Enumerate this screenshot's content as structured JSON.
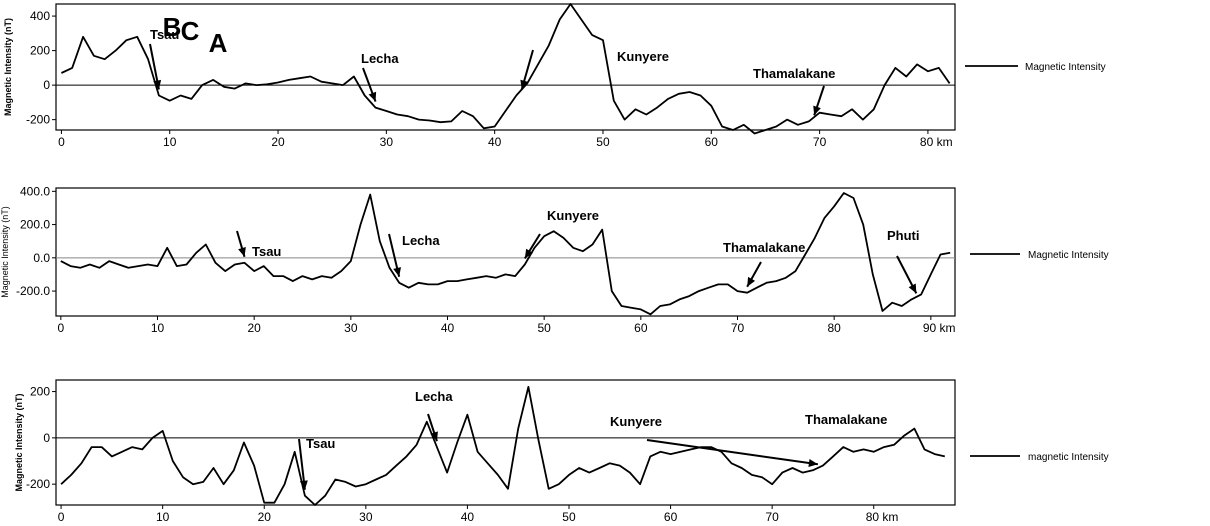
{
  "chart_data": [
    {
      "type": "line",
      "panel": "A",
      "ylabel": "Magnetic Intensity (nT)",
      "x_unit_label": "80 km",
      "xlim": [
        -0.5,
        82.5
      ],
      "ylim": [
        -260,
        470
      ],
      "xticks": [
        0,
        10,
        20,
        30,
        40,
        50,
        60,
        70
      ],
      "yticks": [
        400,
        200,
        0,
        -200
      ],
      "ytick_labels": [
        "400",
        "200",
        "0",
        "-200"
      ],
      "legend": "Magnetic Intensity",
      "x": [
        0,
        1,
        2,
        3,
        4,
        5,
        6,
        7,
        8,
        9,
        10,
        11,
        12,
        13,
        14,
        15,
        16,
        17,
        18,
        19,
        20,
        21,
        22,
        23,
        24,
        25,
        26,
        27,
        28,
        29,
        30,
        31,
        32,
        33,
        34,
        35,
        36,
        37,
        38,
        39,
        40,
        41,
        42,
        43,
        44,
        45,
        46,
        47,
        48,
        49,
        50,
        51,
        52,
        53,
        54,
        55,
        56,
        57,
        58,
        59,
        60,
        61,
        62,
        63,
        64,
        65,
        66,
        67,
        68,
        69,
        70,
        71,
        72,
        73,
        74,
        75,
        76,
        77,
        78,
        79,
        80,
        81,
        82
      ],
      "y": [
        70,
        100,
        280,
        170,
        150,
        200,
        260,
        280,
        150,
        -60,
        -90,
        -60,
        -80,
        0,
        30,
        -10,
        -20,
        10,
        0,
        5,
        15,
        30,
        40,
        50,
        20,
        10,
        0,
        50,
        -60,
        -130,
        -150,
        -170,
        -180,
        -200,
        -205,
        -215,
        -210,
        -150,
        -180,
        -250,
        -240,
        -150,
        -60,
        10,
        120,
        230,
        380,
        470,
        380,
        290,
        260,
        -90,
        -200,
        -140,
        -170,
        -130,
        -80,
        -50,
        -40,
        -60,
        -120,
        -240,
        -260,
        -230,
        -280,
        -260,
        -240,
        -200,
        -230,
        -210,
        -160,
        -170,
        -180,
        -140,
        -200,
        -140,
        0,
        100,
        50,
        120,
        80,
        100,
        10
      ],
      "annotations": [
        {
          "text": "Tsau",
          "x": 9
        },
        {
          "text": "Lecha",
          "x": 29
        },
        {
          "text": "",
          "x": 42.5
        },
        {
          "text": "Kunyere",
          "x": 51
        },
        {
          "text": "Thamalakane",
          "x": 69.5
        }
      ]
    },
    {
      "type": "line",
      "panel": "B",
      "ylabel": "Magnetic Intensity (nT)",
      "x_unit_label": "90 km",
      "xlim": [
        -0.5,
        92.5
      ],
      "ylim": [
        -350,
        420
      ],
      "xticks": [
        0,
        10,
        20,
        30,
        40,
        50,
        60,
        70,
        80
      ],
      "yticks": [
        400,
        200,
        0,
        -200
      ],
      "ytick_labels": [
        "400.0",
        "200.0",
        "0.0",
        "-200.0"
      ],
      "legend": "Magnetic Intensity",
      "x": [
        0,
        1,
        2,
        3,
        4,
        5,
        6,
        7,
        8,
        9,
        10,
        11,
        12,
        13,
        14,
        15,
        16,
        17,
        18,
        19,
        20,
        21,
        22,
        23,
        24,
        25,
        26,
        27,
        28,
        29,
        30,
        31,
        32,
        33,
        34,
        35,
        36,
        37,
        38,
        39,
        40,
        41,
        42,
        43,
        44,
        45,
        46,
        47,
        48,
        49,
        50,
        51,
        52,
        53,
        54,
        55,
        56,
        57,
        58,
        59,
        60,
        61,
        62,
        63,
        64,
        65,
        66,
        67,
        68,
        69,
        70,
        71,
        72,
        73,
        74,
        75,
        76,
        77,
        78,
        79,
        80,
        81,
        82,
        83,
        84,
        85,
        86,
        87,
        88,
        89,
        90,
        91,
        92
      ],
      "y": [
        -20,
        -50,
        -60,
        -40,
        -60,
        -20,
        -40,
        -60,
        -50,
        -40,
        -50,
        60,
        -50,
        -40,
        30,
        80,
        -30,
        -80,
        -40,
        -30,
        -80,
        -50,
        -110,
        -110,
        -140,
        -110,
        -130,
        -110,
        -120,
        -80,
        -20,
        200,
        380,
        100,
        -60,
        -150,
        -180,
        -150,
        -160,
        -160,
        -140,
        -140,
        -130,
        -120,
        -110,
        -120,
        -100,
        -110,
        -40,
        60,
        130,
        160,
        120,
        60,
        40,
        80,
        170,
        -200,
        -290,
        -300,
        -310,
        -340,
        -290,
        -280,
        -250,
        -230,
        -200,
        -180,
        -160,
        -160,
        -200,
        -210,
        -180,
        -150,
        -140,
        -120,
        -80,
        20,
        120,
        240,
        310,
        390,
        360,
        200,
        -100,
        -320,
        -270,
        -290,
        -250,
        -220,
        -100,
        20,
        30
      ],
      "annotations": [
        {
          "text": "Tsau",
          "x": 19
        },
        {
          "text": "Lecha",
          "x": 35
        },
        {
          "text": "Kunyere",
          "x": 48
        },
        {
          "text": "Thamalakane",
          "x": 71
        },
        {
          "text": "Phuti",
          "x": 88.5
        }
      ]
    },
    {
      "type": "line",
      "panel": "C",
      "ylabel": "Magnetic Intensity (nT)",
      "x_unit_label": "80 km",
      "xlim": [
        -0.5,
        88
      ],
      "ylim": [
        -290,
        250
      ],
      "xticks": [
        0,
        10,
        20,
        30,
        40,
        50,
        60,
        70
      ],
      "yticks": [
        200,
        0,
        -200
      ],
      "ytick_labels": [
        "200",
        "0",
        "-200"
      ],
      "legend": "magnetic Intensity",
      "x": [
        0,
        1,
        2,
        3,
        4,
        5,
        6,
        7,
        8,
        9,
        10,
        11,
        12,
        13,
        14,
        15,
        16,
        17,
        18,
        19,
        20,
        21,
        22,
        23,
        24,
        25,
        26,
        27,
        28,
        29,
        30,
        31,
        32,
        33,
        34,
        35,
        36,
        37,
        38,
        39,
        40,
        41,
        42,
        43,
        44,
        45,
        46,
        47,
        48,
        49,
        50,
        51,
        52,
        53,
        54,
        55,
        56,
        57,
        58,
        59,
        60,
        61,
        62,
        63,
        64,
        65,
        66,
        67,
        68,
        69,
        70,
        71,
        72,
        73,
        74,
        75,
        76,
        77,
        78,
        79,
        80,
        81,
        82,
        83,
        84,
        85,
        86,
        87
      ],
      "y": [
        -200,
        -160,
        -110,
        -40,
        -40,
        -80,
        -60,
        -40,
        -50,
        0,
        30,
        -100,
        -170,
        -200,
        -190,
        -130,
        -200,
        -140,
        -20,
        -120,
        -280,
        -280,
        -200,
        -60,
        -250,
        -290,
        -250,
        -180,
        -190,
        -210,
        -200,
        -180,
        -160,
        -120,
        -80,
        -30,
        70,
        -40,
        -150,
        -20,
        100,
        -60,
        -110,
        -160,
        -220,
        40,
        220,
        -10,
        -220,
        -200,
        -160,
        -130,
        -150,
        -130,
        -110,
        -120,
        -150,
        -200,
        -80,
        -60,
        -70,
        -60,
        -50,
        -40,
        -40,
        -60,
        -110,
        -130,
        -160,
        -170,
        -200,
        -150,
        -130,
        -150,
        -140,
        -120,
        -80,
        -40,
        -60,
        -50,
        -60,
        -40,
        -30,
        10,
        40,
        -50,
        -70,
        -80
      ],
      "annotations": [
        {
          "text": "Tsau",
          "x": 24
        },
        {
          "text": "Lecha",
          "x": 37
        },
        {
          "text": "Kunyere",
          "x": 56.5
        },
        {
          "text": "Thamalakane",
          "x": 74.5
        }
      ]
    }
  ]
}
